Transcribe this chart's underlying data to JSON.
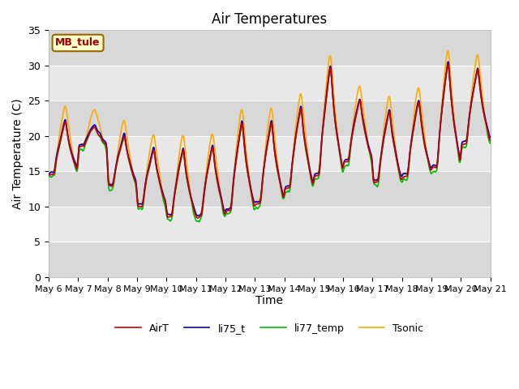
{
  "title": "Air Temperatures",
  "xlabel": "Time",
  "ylabel": "Air Temperature (C)",
  "ylim": [
    0,
    35
  ],
  "yticks": [
    0,
    5,
    10,
    15,
    20,
    25,
    30,
    35
  ],
  "xtick_labels": [
    "May 6",
    "May 7",
    "May 8",
    "May 9",
    "May 10",
    "May 11",
    "May 12",
    "May 13",
    "May 14",
    "May 15",
    "May 16",
    "May 17",
    "May 18",
    "May 19",
    "May 20",
    "May 21"
  ],
  "colors": {
    "AirT": "#cc0000",
    "li75_t": "#0000cc",
    "li77_temp": "#00bb00",
    "Tsonic": "#ffaa00"
  },
  "site_label": "MB_tule",
  "site_label_color": "#990000",
  "site_label_bg": "#ffffcc",
  "site_label_border": "#996600",
  "plot_bg": "#f0f0f0",
  "band_light": "#e8e8e8",
  "band_dark": "#d8d8d8",
  "grid_color": "#ffffff",
  "line_width": 1.2
}
